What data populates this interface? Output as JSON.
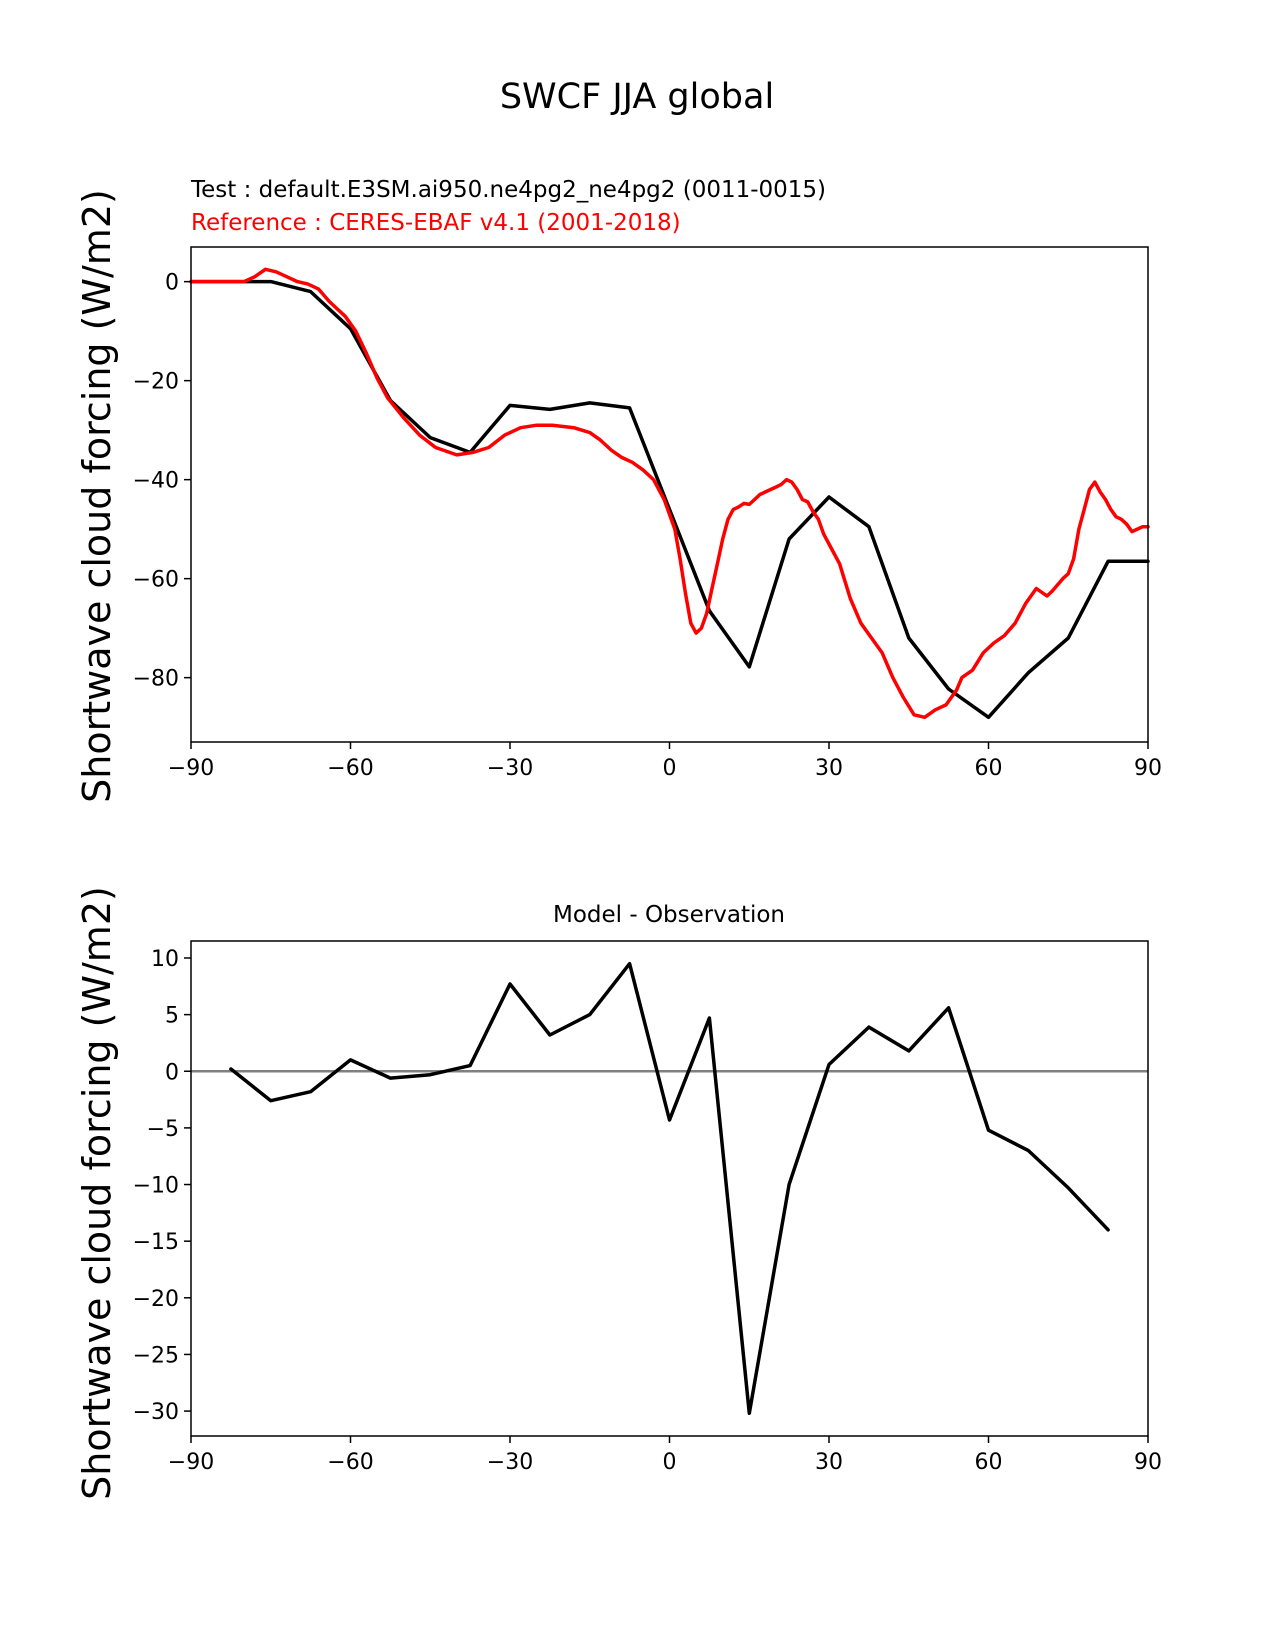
{
  "figure": {
    "title": "SWCF JJA global"
  },
  "chart_data": [
    {
      "type": "line",
      "title_test": "Test : default.E3SM.ai950.ne4pg2_ne4pg2 (0011-0015)",
      "title_reference": "Reference : CERES-EBAF v4.1 (2001-2018)",
      "ylabel": "Shortwave cloud forcing (W/m2)",
      "xlabel": "",
      "xlim": [
        -90,
        90
      ],
      "ylim": [
        -93,
        7
      ],
      "xticks": [
        -90,
        -60,
        -30,
        0,
        30,
        60,
        90
      ],
      "yticks": [
        -80,
        -60,
        -40,
        -20,
        0
      ],
      "grid": false,
      "series": [
        {
          "name": "Test",
          "color": "#000000",
          "x": [
            -90,
            -82.5,
            -75,
            -67.5,
            -60,
            -52.5,
            -45,
            -37.5,
            -30,
            -22.5,
            -15,
            -7.5,
            0,
            7.5,
            15,
            22.5,
            30,
            37.5,
            45,
            52.5,
            60,
            67.5,
            75,
            82.5,
            90
          ],
          "y": [
            0,
            0,
            0,
            -2,
            -9.5,
            -24,
            -31.5,
            -34.5,
            -25,
            -25.8,
            -24.5,
            -25.5,
            -46,
            -66.5,
            -77.8,
            -52,
            -43.5,
            -49.5,
            -72,
            -82.3,
            -88,
            -79,
            -72,
            -56.5,
            -56.5
          ]
        },
        {
          "name": "Reference",
          "color": "#ff0000",
          "x": [
            -90,
            -84,
            -80,
            -78,
            -76,
            -74,
            -72,
            -70,
            -68,
            -66,
            -64,
            -63,
            -61,
            -59,
            -57,
            -55,
            -53,
            -50,
            -47,
            -44,
            -40,
            -37,
            -34,
            -31,
            -28,
            -25,
            -22,
            -18,
            -15,
            -13,
            -11,
            -9,
            -7,
            -5,
            -3,
            -1,
            1,
            2,
            3,
            4,
            5,
            6,
            7,
            8,
            9,
            10,
            11,
            12,
            13,
            14,
            15,
            16,
            17,
            18,
            20,
            21,
            22,
            23,
            24,
            25,
            26,
            27,
            28,
            29,
            30,
            32,
            34,
            36,
            38,
            40,
            42,
            44,
            46,
            48,
            50,
            52,
            54,
            55,
            57,
            59,
            61,
            63,
            65,
            67,
            69,
            71,
            72,
            74,
            75,
            76,
            77,
            78,
            79,
            80,
            81,
            82,
            83,
            84,
            85,
            86,
            87,
            88,
            89,
            90
          ],
          "y": [
            0,
            0,
            0,
            1,
            2.5,
            2,
            1,
            0,
            -0.5,
            -1.5,
            -4,
            -5,
            -7,
            -10,
            -14.5,
            -19.5,
            -23.5,
            -27.5,
            -31,
            -33.5,
            -35,
            -34.5,
            -33.5,
            -31,
            -29.5,
            -29,
            -29,
            -29.5,
            -30.5,
            -32,
            -34,
            -35.5,
            -36.5,
            -38,
            -40,
            -44,
            -50,
            -56,
            -63,
            -69,
            -71,
            -70,
            -67,
            -62,
            -57,
            -52,
            -48,
            -46,
            -45.5,
            -44.8,
            -45,
            -44,
            -43,
            -42.5,
            -41.5,
            -41,
            -40,
            -40.5,
            -42,
            -44,
            -44.5,
            -46.5,
            -48,
            -51,
            -53,
            -57,
            -64,
            -69,
            -72,
            -75,
            -80,
            -84,
            -87.5,
            -88,
            -86.5,
            -85.5,
            -82.5,
            -80,
            -78.5,
            -75,
            -73,
            -71.5,
            -69,
            -65,
            -62,
            -63.5,
            -62.5,
            -60,
            -59,
            -56,
            -50,
            -46,
            -42,
            -40.5,
            -42.5,
            -44,
            -46,
            -47.5,
            -48,
            -49,
            -50.5,
            -50,
            -49.5,
            -49.5
          ]
        }
      ]
    },
    {
      "type": "line",
      "title": "Model - Observation",
      "ylabel": "Shortwave cloud forcing (W/m2)",
      "xlabel": "",
      "xlim": [
        -90,
        90
      ],
      "ylim": [
        -32.2,
        11.5
      ],
      "xticks": [
        -90,
        -60,
        -30,
        0,
        30,
        60,
        90
      ],
      "yticks": [
        -30,
        -25,
        -20,
        -15,
        -10,
        -5,
        0,
        5,
        10
      ],
      "zero_line_color": "#808080",
      "grid": false,
      "series": [
        {
          "name": "Model - Observation",
          "color": "#000000",
          "x": [
            -82.5,
            -75,
            -67.5,
            -60,
            -52.5,
            -45,
            -37.5,
            -30,
            -22.5,
            -15,
            -7.5,
            0,
            7.5,
            15,
            22.5,
            30,
            37.5,
            45,
            52.5,
            60,
            67.5,
            75,
            82.5
          ],
          "y": [
            0.2,
            -2.6,
            -1.8,
            1,
            -0.6,
            -0.3,
            0.5,
            7.7,
            3.2,
            5,
            9.5,
            -4.3,
            4.7,
            -30.2,
            -10,
            0.6,
            3.9,
            1.8,
            5.6,
            -5.2,
            -7,
            -10.3,
            -14
          ]
        }
      ]
    }
  ]
}
